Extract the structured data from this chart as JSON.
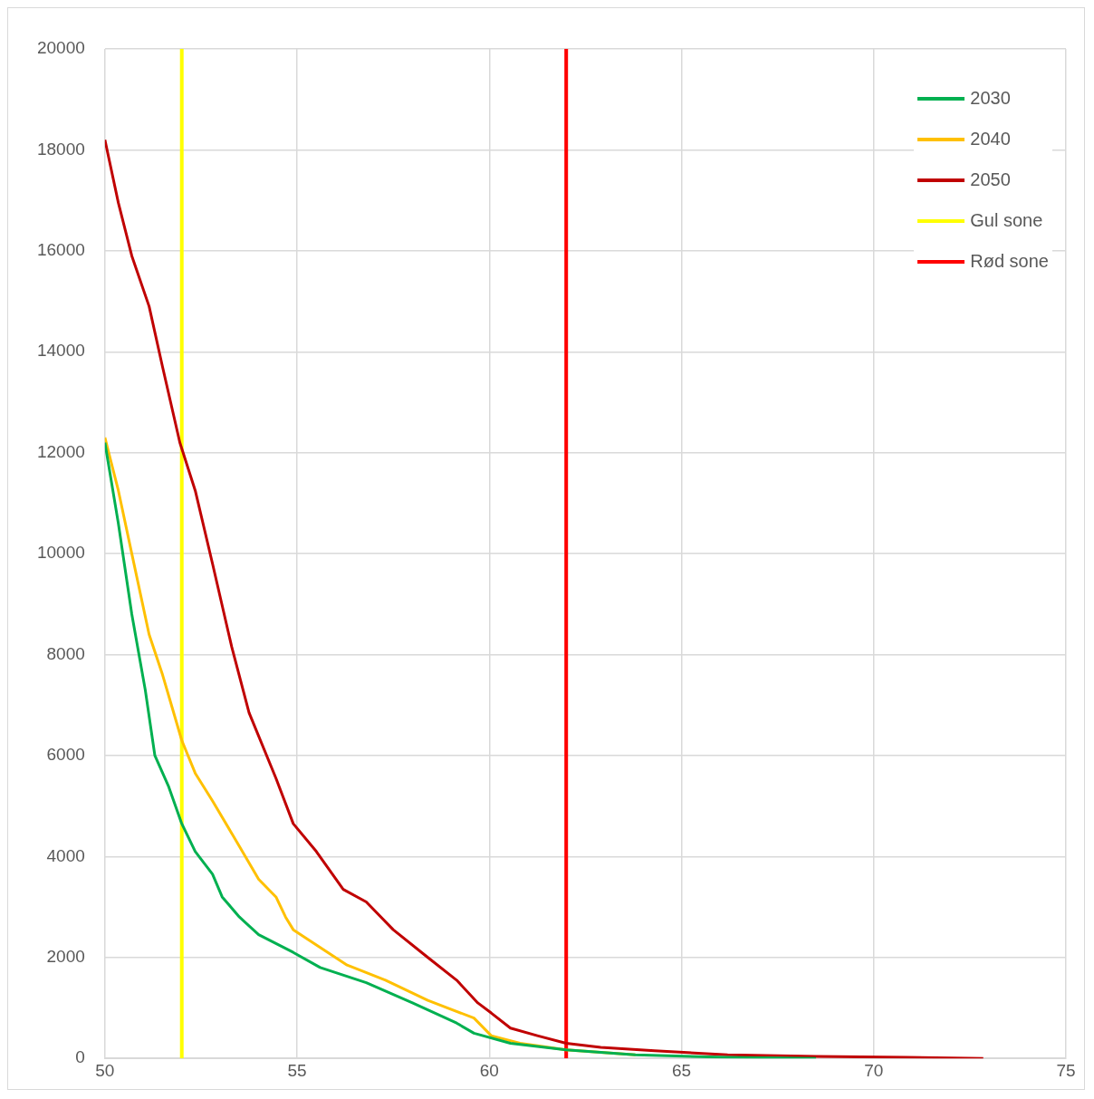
{
  "chart_data": {
    "type": "line",
    "xlim": [
      50,
      75
    ],
    "xticks": [
      50,
      55,
      60,
      65,
      70,
      75
    ],
    "ylim": [
      0,
      20000
    ],
    "yticks": [
      0,
      2000,
      4000,
      6000,
      8000,
      10000,
      12000,
      14000,
      16000,
      18000,
      20000
    ],
    "grid": true,
    "legend": "top right",
    "marker": "none",
    "series": [
      {
        "name": "2030",
        "color": "#00b050",
        "x": [
          50,
          50.35,
          50.7,
          51.05,
          51.3,
          51.65,
          52,
          52.35,
          52.8,
          53.05,
          53.5,
          54,
          54.9,
          55.6,
          56.8,
          58,
          59.15,
          59.6,
          60.55,
          62,
          63.8,
          66.2,
          68.5
        ],
        "values": [
          12200,
          10600,
          8800,
          7300,
          6000,
          5400,
          4650,
          4100,
          3650,
          3200,
          2800,
          2450,
          2100,
          1800,
          1500,
          1100,
          700,
          500,
          300,
          170,
          70,
          20,
          0
        ]
      },
      {
        "name": "2040",
        "color": "#ffc000",
        "x": [
          50,
          50.35,
          50.7,
          51.15,
          51.5,
          51.75,
          52,
          52.35,
          52.8,
          53.5,
          54,
          54.45,
          54.7,
          54.9,
          55.6,
          56.3,
          57.3,
          58.4,
          59.6,
          60.05,
          60.8,
          62,
          63.8
        ],
        "values": [
          12300,
          11250,
          10000,
          8400,
          7600,
          6950,
          6300,
          5650,
          5100,
          4200,
          3550,
          3200,
          2800,
          2550,
          2200,
          1850,
          1550,
          1150,
          800,
          450,
          300,
          170,
          70
        ]
      },
      {
        "name": "2050",
        "color": "#c00000",
        "x": [
          50,
          50.35,
          50.7,
          51.15,
          51.5,
          51.95,
          52.35,
          52.8,
          53.3,
          53.75,
          54.45,
          54.9,
          55.5,
          56.2,
          56.8,
          57.5,
          58.4,
          59.15,
          59.7,
          60.05,
          60.55,
          61.25,
          62,
          62.9,
          64.3,
          66.2,
          68.5,
          70.85,
          72.85
        ],
        "values": [
          18200,
          16950,
          15900,
          14900,
          13700,
          12200,
          11250,
          9800,
          8150,
          6850,
          5550,
          4650,
          4100,
          3350,
          3100,
          2550,
          2000,
          1550,
          1100,
          900,
          600,
          450,
          300,
          220,
          150,
          70,
          40,
          20,
          0
        ]
      },
      {
        "name": "Gul sone",
        "color": "#ffff00",
        "x": [
          52,
          52
        ],
        "values": [
          0,
          20000
        ]
      },
      {
        "name": "Rød sone",
        "color": "#ff0000",
        "x": [
          62,
          62
        ],
        "values": [
          0,
          20000
        ]
      }
    ]
  }
}
